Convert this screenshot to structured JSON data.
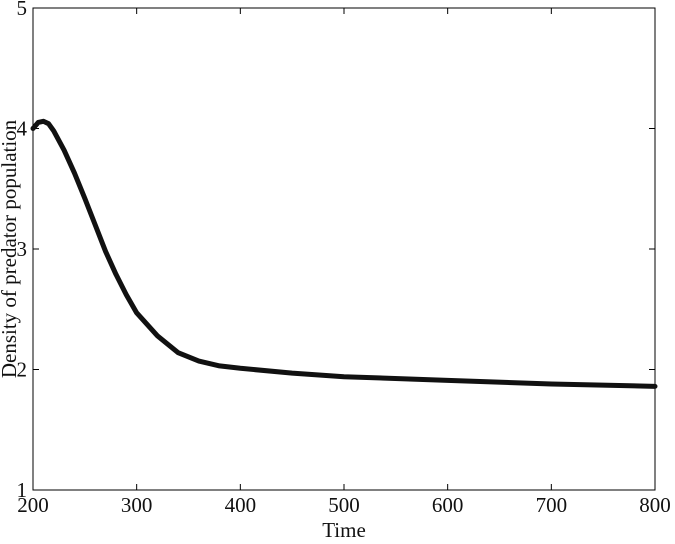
{
  "chart_data": {
    "type": "line",
    "x_label": "Time",
    "y_label": "Density of predator population",
    "x": [
      200,
      205,
      210,
      215,
      220,
      230,
      240,
      250,
      260,
      270,
      280,
      290,
      300,
      320,
      340,
      360,
      380,
      400,
      450,
      500,
      600,
      700,
      800
    ],
    "series": [
      {
        "name": "predator",
        "color": "#111111",
        "values": [
          4.0,
          4.05,
          4.06,
          4.04,
          3.98,
          3.82,
          3.63,
          3.42,
          3.2,
          2.98,
          2.79,
          2.62,
          2.47,
          2.28,
          2.14,
          2.07,
          2.03,
          2.01,
          1.97,
          1.94,
          1.91,
          1.88,
          1.86
        ]
      }
    ],
    "xlim": [
      200,
      800
    ],
    "ylim": [
      1,
      5
    ],
    "xticks": [
      200,
      300,
      400,
      500,
      600,
      700,
      800
    ],
    "yticks": [
      1,
      2,
      3,
      4,
      5
    ]
  }
}
